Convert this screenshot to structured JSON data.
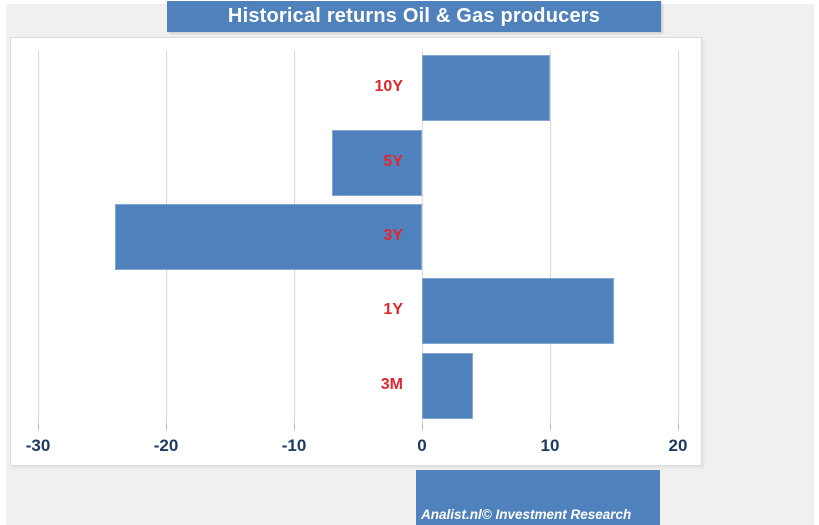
{
  "title": {
    "text": "Historical returns Oil & Gas producers"
  },
  "chart_data": {
    "type": "bar",
    "orientation": "horizontal",
    "title": "Historical returns Oil & Gas producers",
    "categories": [
      "10Y",
      "5Y",
      "3Y",
      "1Y",
      "3M"
    ],
    "values": [
      10,
      -7,
      -24,
      15,
      4
    ],
    "x_ticks": [
      -30,
      -20,
      -10,
      0,
      10,
      20
    ],
    "xlim": [
      -30,
      20
    ],
    "xlabel": "",
    "ylabel": "",
    "grid": true,
    "legend_position": "none",
    "bar_color": "#4f81bd",
    "category_label_color": "#e2262c",
    "axis_tick_color": "#1f3a63",
    "title_bg_color": "#4f81bd",
    "footer_bg_color": "#4f81bd"
  },
  "footer": {
    "text": "Analist.nl© Investment Research"
  }
}
